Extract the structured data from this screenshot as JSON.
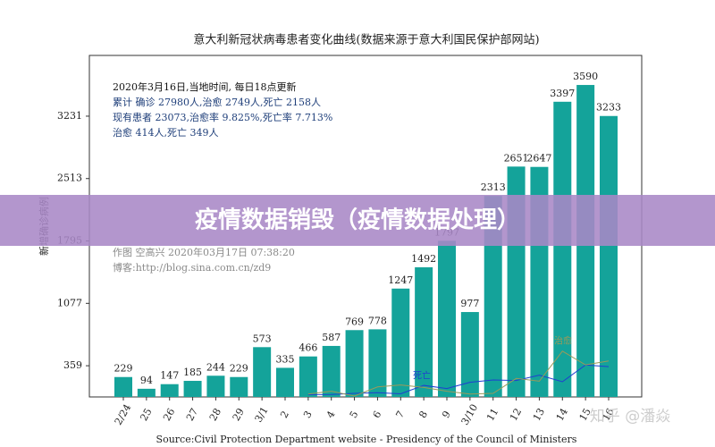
{
  "chart_data": {
    "type": "bar",
    "title": "意大利新冠状病毒患者变化曲线(数据来源于意大利国民保护部网站)",
    "y_label": "新增确诊病例",
    "categories": [
      "2/24",
      "25",
      "26",
      "27",
      "28",
      "29",
      "3/1",
      "2",
      "3",
      "4",
      "5",
      "6",
      "7",
      "8",
      "9",
      "3/10",
      "11",
      "12",
      "13",
      "14",
      "15",
      "16"
    ],
    "values": [
      229,
      94,
      147,
      185,
      244,
      229,
      573,
      335,
      466,
      587,
      769,
      778,
      1247,
      1492,
      1797,
      977,
      2313,
      2651,
      2647,
      3397,
      3590,
      3233
    ],
    "color": "#14a39a",
    "ylim": [
      0,
      3930
    ],
    "yticks": [
      359,
      1077,
      1795,
      2513,
      3231
    ],
    "lines": [
      {
        "name": "死亡",
        "color": "#1f3fd0",
        "values": [
          null,
          null,
          null,
          null,
          null,
          null,
          null,
          null,
          27,
          28,
          41,
          49,
          36,
          133,
          97,
          168,
          196,
          189,
          250,
          175,
          368,
          349
        ]
      },
      {
        "name": "治愈",
        "color": "#9a9a5a",
        "values": [
          null,
          null,
          null,
          null,
          null,
          null,
          null,
          null,
          33,
          66,
          11,
          116,
          138,
          109,
          66,
          33,
          41,
          213,
          181,
          527,
          369,
          414
        ]
      }
    ],
    "annotations": [
      "2020年3月16日,当地时间, 每日18点更新",
      "累计 确诊 27980人,治愈 2749人,死亡 2158人",
      "现有患者 23073,治愈率 9.825%,死亡率 7.713%",
      "治愈 414人,死亡 349人"
    ],
    "credits": [
      "作图 空高兴 2020年03月17日 07:38:20",
      "博客:http://blog.sina.com.cn/zd9"
    ],
    "source": "Source:Civil Protection Department website - Presidency of the Council of Ministers"
  },
  "banner": {
    "text": "疫情数据销毁（疫情数据处理）"
  },
  "watermark": "知乎 @潘焱"
}
